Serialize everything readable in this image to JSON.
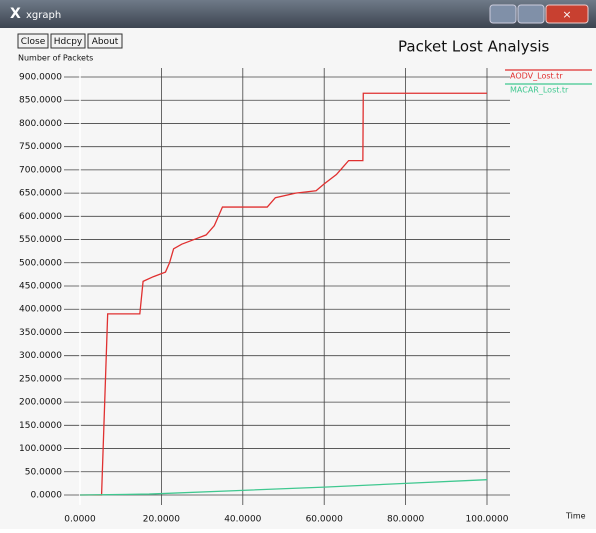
{
  "window_title": "xgraph",
  "buttons": [
    "Close",
    "Hdcpy",
    "About"
  ],
  "chart_data": {
    "type": "line",
    "title": "Packet Lost Analysis",
    "ylabel": "Number of Packets",
    "xlabel": "Time",
    "xlim": [
      0,
      100
    ],
    "ylim": [
      0,
      900
    ],
    "grid": true,
    "legend": "top-right",
    "xticks": [
      {
        "value": 0,
        "label": "0.0000"
      },
      {
        "value": 20,
        "label": "20.0000"
      },
      {
        "value": 40,
        "label": "40.0000"
      },
      {
        "value": 60,
        "label": "60.0000"
      },
      {
        "value": 80,
        "label": "80.0000"
      },
      {
        "value": 100,
        "label": "100.0000"
      }
    ],
    "yticks": [
      {
        "value": 0,
        "label": "0.0000"
      },
      {
        "value": 50,
        "label": "50.0000"
      },
      {
        "value": 100,
        "label": "100.0000"
      },
      {
        "value": 150,
        "label": "150.0000"
      },
      {
        "value": 200,
        "label": "200.0000"
      },
      {
        "value": 250,
        "label": "250.0000"
      },
      {
        "value": 300,
        "label": "300.0000"
      },
      {
        "value": 350,
        "label": "350.0000"
      },
      {
        "value": 400,
        "label": "400.0000"
      },
      {
        "value": 450,
        "label": "450.0000"
      },
      {
        "value": 500,
        "label": "500.0000"
      },
      {
        "value": 550,
        "label": "550.0000"
      },
      {
        "value": 600,
        "label": "600.0000"
      },
      {
        "value": 650,
        "label": "650.0000"
      },
      {
        "value": 700,
        "label": "700.0000"
      },
      {
        "value": 750,
        "label": "750.0000"
      },
      {
        "value": 800,
        "label": "800.0000"
      },
      {
        "value": 850,
        "label": "850.0000"
      },
      {
        "value": 900,
        "label": "900.0000"
      }
    ],
    "series": [
      {
        "name": "AODV_Lost.tr",
        "color": "#e03030",
        "x": [
          0,
          5.3,
          6.8,
          14.7,
          15.5,
          18,
          21,
          22,
          23,
          25,
          28,
          31,
          33,
          34,
          35,
          46,
          48,
          53,
          58,
          60,
          63,
          64,
          66,
          69.5,
          69.6,
          100
        ],
        "values": [
          0,
          0,
          390,
          390,
          460,
          470,
          480,
          500,
          530,
          540,
          550,
          560,
          580,
          600,
          620,
          620,
          640,
          650,
          655,
          670,
          690,
          700,
          720,
          720,
          865,
          865
        ]
      },
      {
        "name": "MACAR_Lost.tr",
        "color": "#40c890",
        "x": [
          0,
          17,
          40,
          60,
          80,
          100
        ],
        "values": [
          0,
          2,
          10,
          17,
          25,
          33
        ]
      }
    ]
  }
}
